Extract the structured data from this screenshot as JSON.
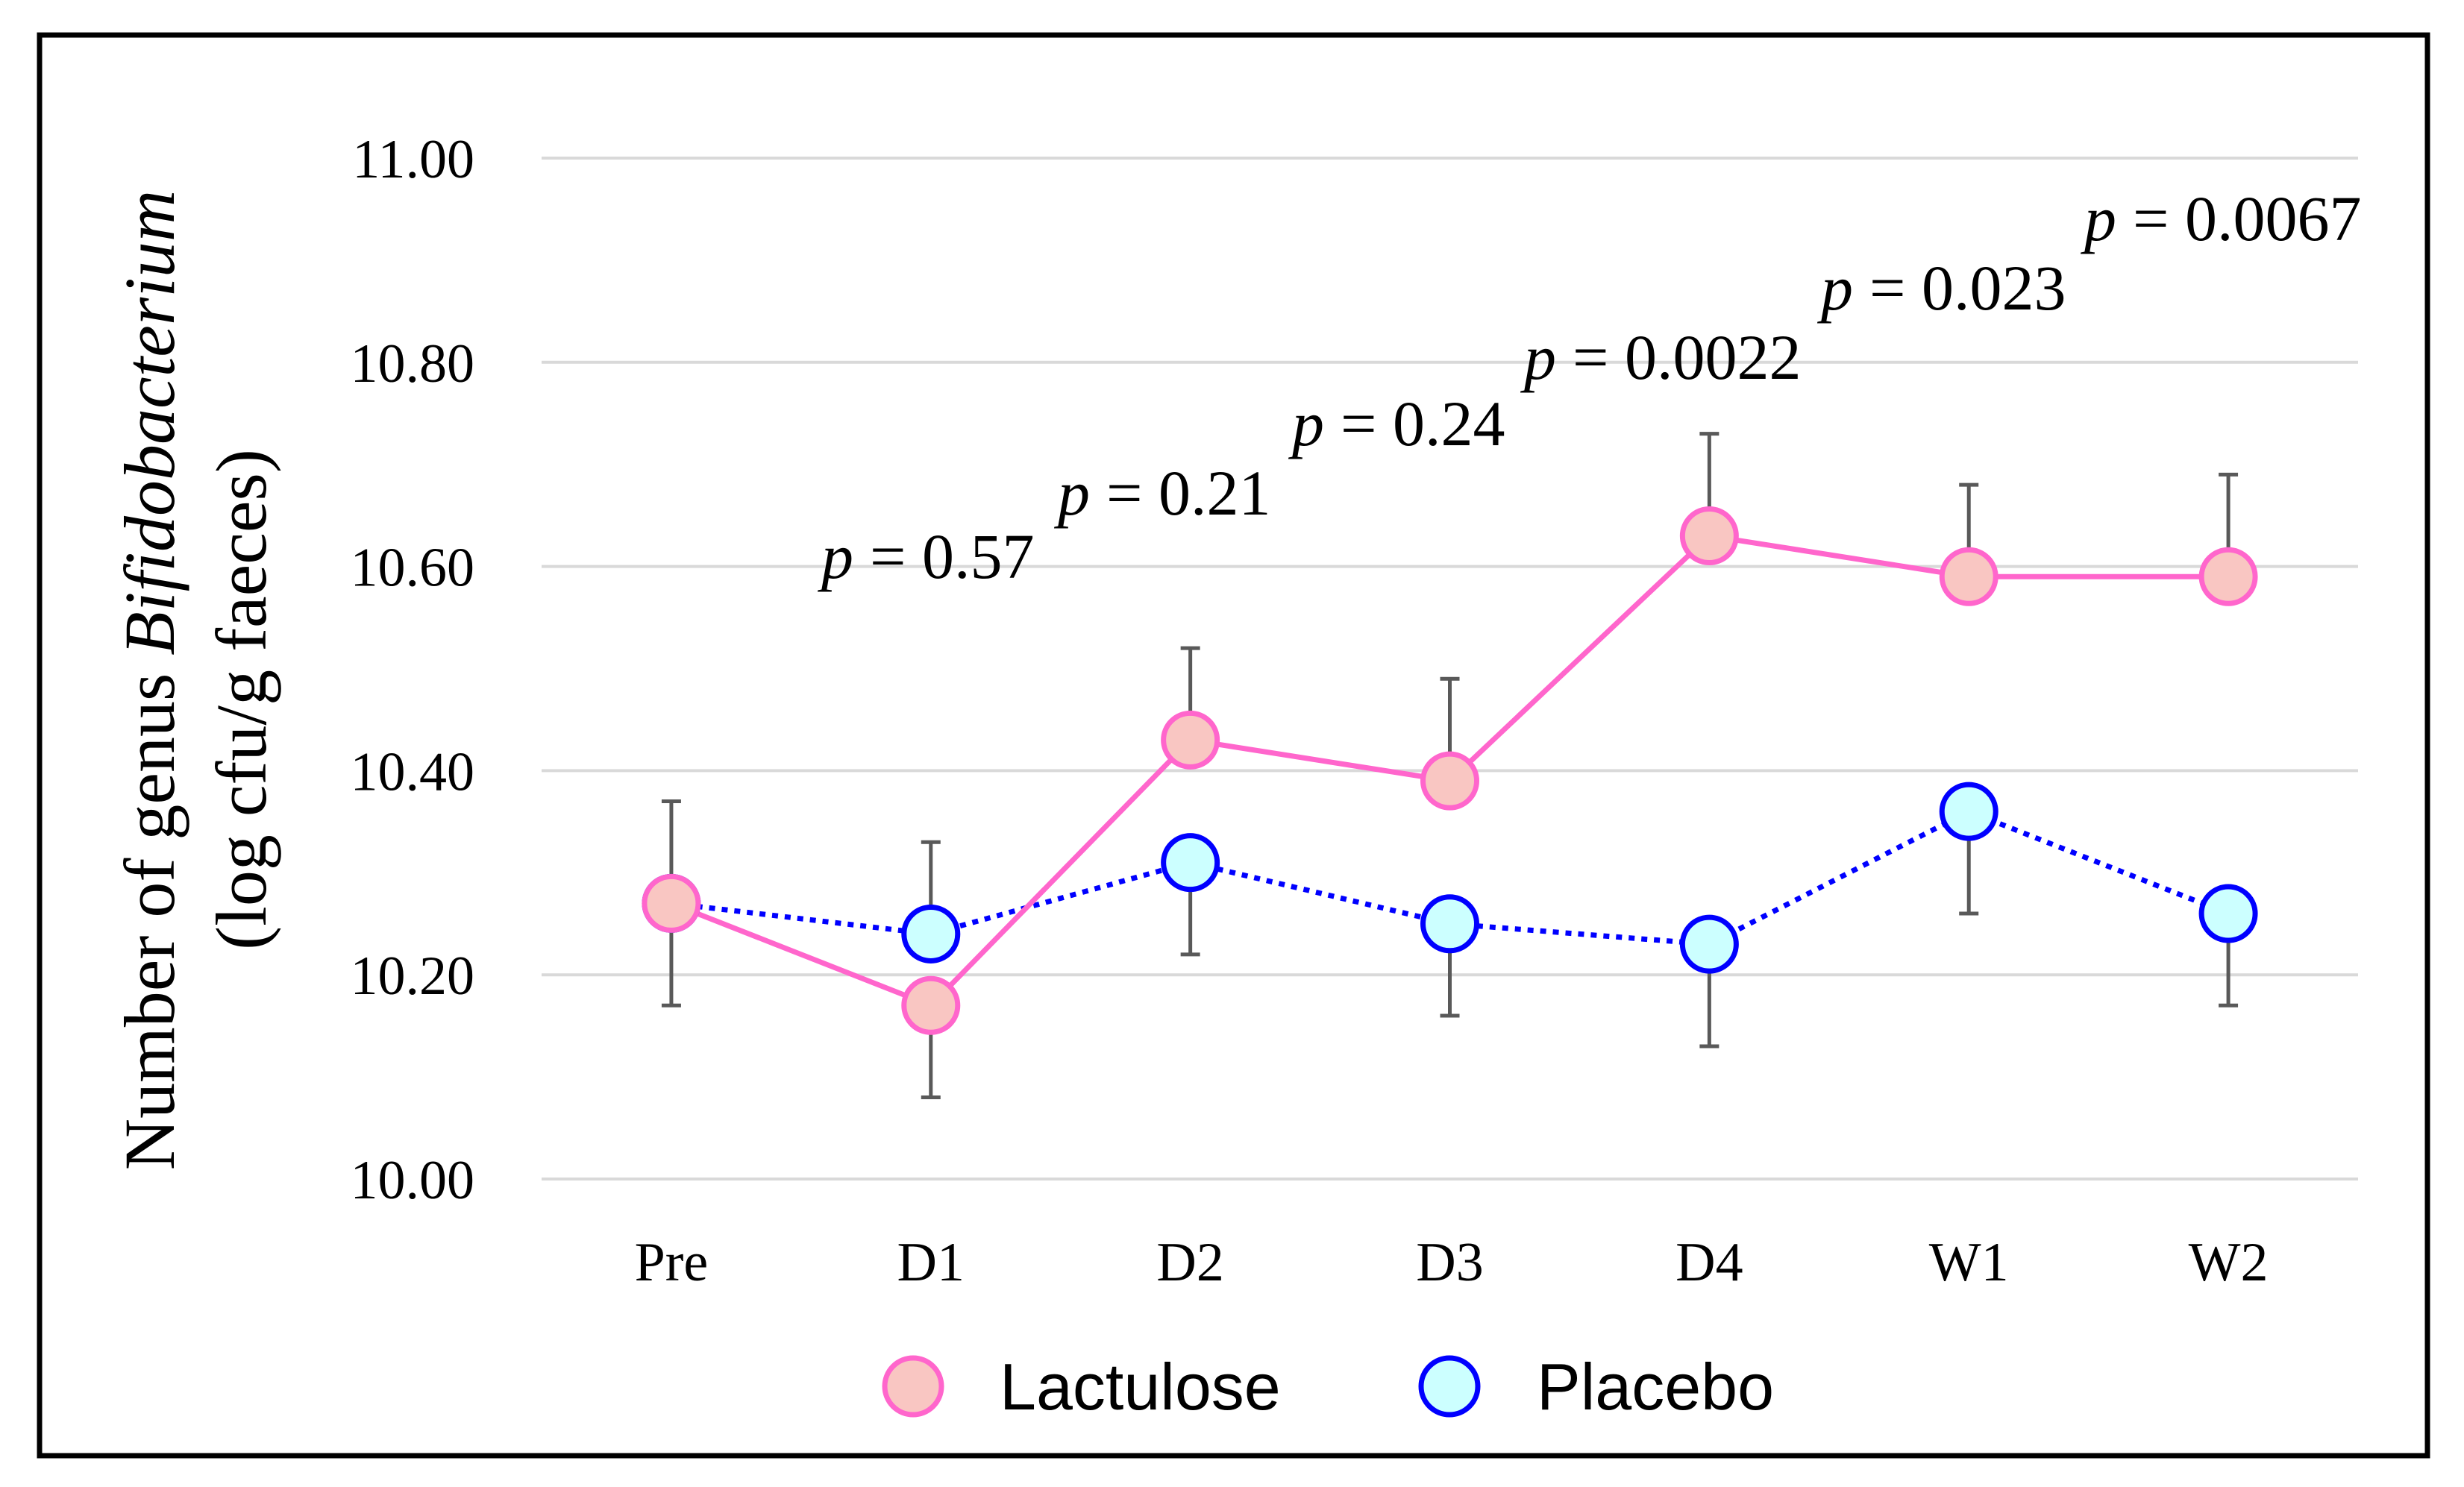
{
  "chart_data": {
    "type": "line",
    "title": "",
    "xlabel": "",
    "ylabel": {
      "line1": "Number of genus",
      "line1_italic": "Bifidobacterium",
      "line2": "(log cfu/g faeces)"
    },
    "categories": [
      "Pre",
      "D1",
      "D2",
      "D3",
      "D4",
      "W1",
      "W2"
    ],
    "ylim": [
      10.0,
      11.0
    ],
    "yticks": [
      10.0,
      10.2,
      10.4,
      10.6,
      10.8,
      11.0
    ],
    "ytick_labels": [
      "10.00",
      "10.20",
      "10.40",
      "10.60",
      "10.80",
      "11.00"
    ],
    "grid": true,
    "legend_position": "bottom",
    "series": [
      {
        "name": "Lactulose",
        "color": "#FF66CC",
        "marker_fill": "#F9C6C2",
        "values": [
          10.27,
          10.17,
          10.43,
          10.39,
          10.63,
          10.59,
          10.59
        ],
        "error_upper": [
          0.1,
          0,
          0.09,
          0.1,
          0.1,
          0.09,
          0.1
        ],
        "error_lower": [
          0,
          0.09,
          0,
          0,
          0,
          0,
          0
        ]
      },
      {
        "name": "Placebo",
        "color": "#0000FF",
        "marker_fill": "#CCFFFF",
        "values": [
          10.27,
          10.24,
          10.31,
          10.25,
          10.23,
          10.36,
          10.26
        ],
        "error_upper": [
          0,
          0.09,
          0,
          0,
          0,
          0,
          0
        ],
        "error_lower": [
          0.1,
          0,
          0.09,
          0.09,
          0.1,
          0.1,
          0.09
        ]
      }
    ],
    "annotations": [
      {
        "category_index": 1,
        "italic": "p",
        "value": "= 0.57"
      },
      {
        "category_index": 2,
        "italic": "p",
        "value": "= 0.21"
      },
      {
        "category_index": 3,
        "italic": "p",
        "value": "= 0.24"
      },
      {
        "category_index": 4,
        "italic": "p",
        "value": "= 0.0022"
      },
      {
        "category_index": 5,
        "italic": "p",
        "value": "= 0.023"
      },
      {
        "category_index": 6,
        "italic": "p",
        "value": "= 0.0067"
      }
    ]
  },
  "colors": {
    "grid": "#D9D9D9",
    "error_bar": "#595959",
    "frame": "#000000"
  }
}
